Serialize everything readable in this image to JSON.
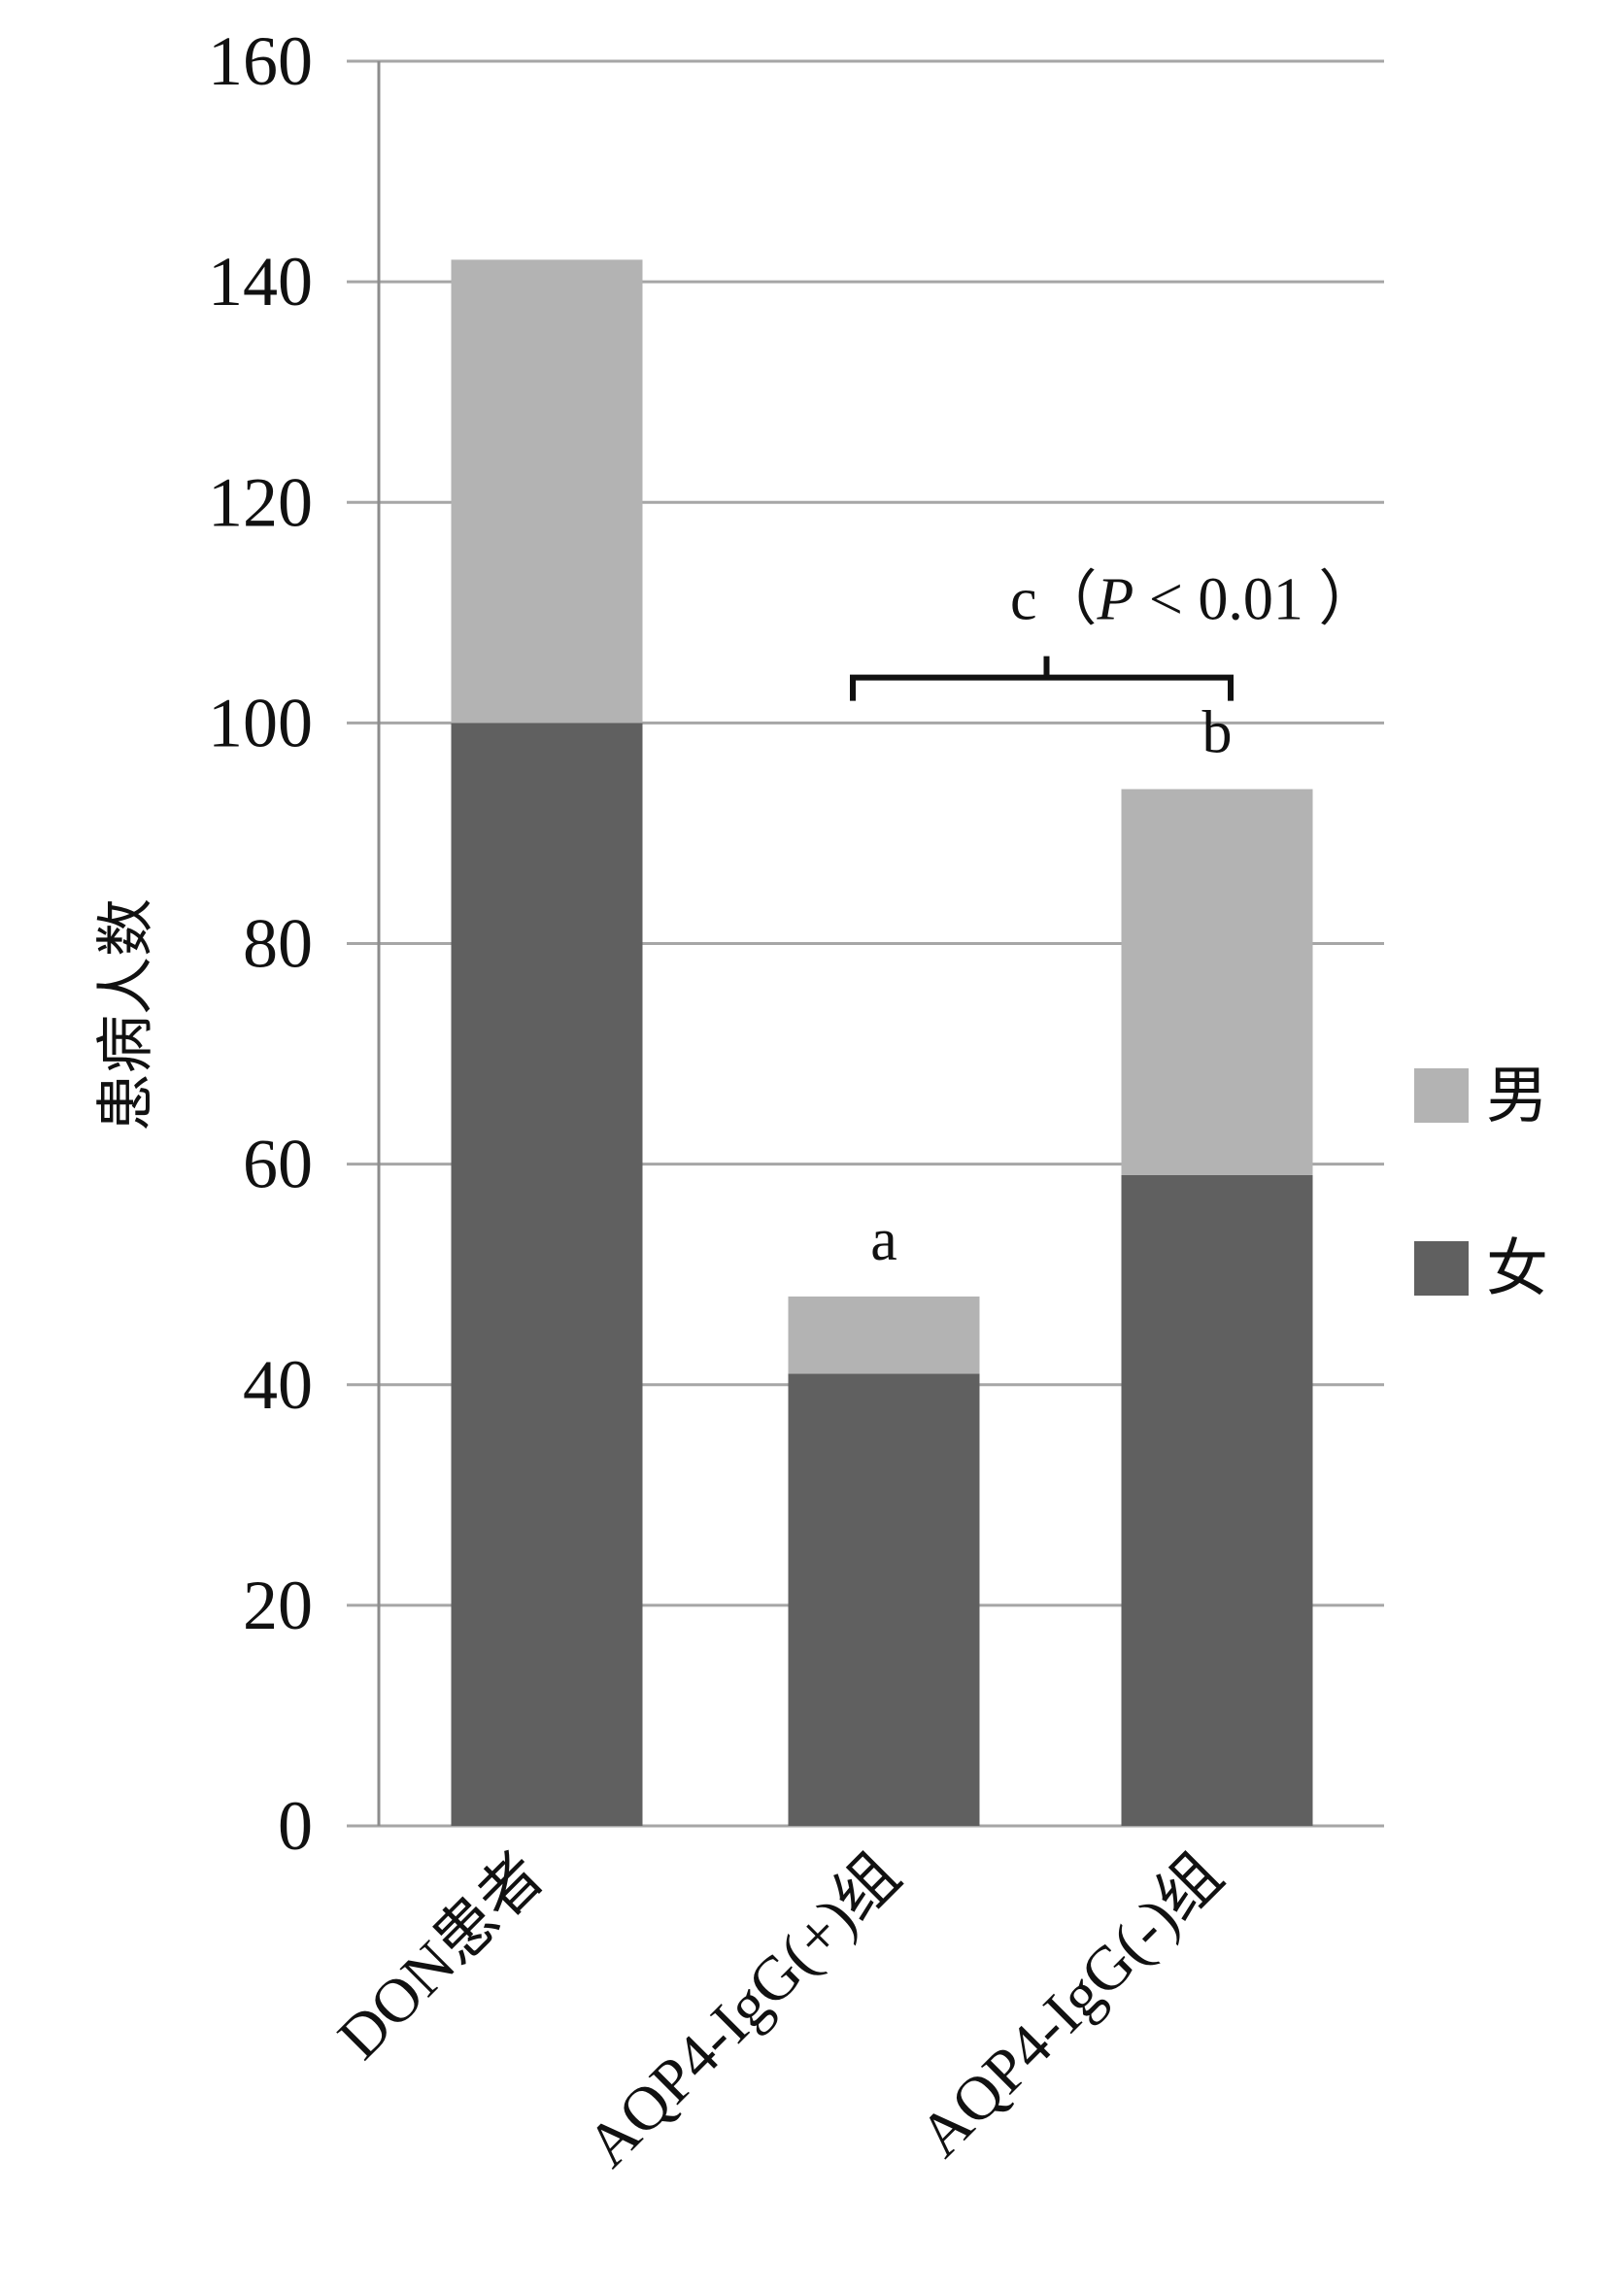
{
  "chart_data": {
    "type": "bar",
    "stacked": true,
    "categories": [
      "DON患者",
      "AQP4-IgG(+)组",
      "AQP4-IgG(-)组"
    ],
    "series": [
      {
        "name": "女",
        "values": [
          100,
          41,
          59
        ],
        "color": "#606060"
      },
      {
        "name": "男",
        "values": [
          42,
          7,
          35
        ],
        "color": "#b3b3b3"
      }
    ],
    "ylabel": "患病人数",
    "xlabel": "",
    "ylim": [
      0,
      160
    ],
    "yticks": [
      0,
      20,
      40,
      60,
      80,
      100,
      120,
      140,
      160
    ],
    "grid": true,
    "legend_position": "right",
    "bar_annotations": [
      {
        "category_index": 1,
        "text": "a"
      },
      {
        "category_index": 2,
        "text": "b"
      }
    ],
    "bracket": {
      "from_category": 1,
      "to_category": 2,
      "y": 105,
      "label_prefix": "c（",
      "label_italic": "P",
      "label_suffix": " < 0.01 ）"
    },
    "colors": {
      "grid": "#a6a6a6",
      "axis": "#8c8c8c",
      "text": "#111111"
    }
  }
}
